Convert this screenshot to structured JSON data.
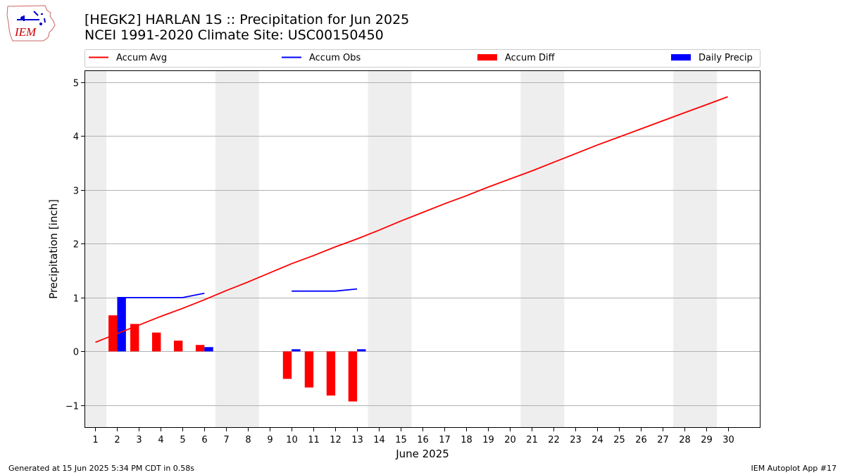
{
  "title": "[HEGK2] HARLAN 1S :: Precipitation for Jun 2025",
  "subtitle": "NCEI 1991-2020 Climate Site: USC00150450",
  "logo_text": "IEM",
  "footer_left": "Generated at 15 Jun 2025 5:34 PM CDT in 0.58s",
  "footer_right": "IEM Autoplot App #17",
  "chart_data": {
    "type": "bar",
    "xlabel": "June 2025",
    "ylabel": "Precipitation [inch]",
    "xlim": [
      0.5,
      31.5
    ],
    "ylim": [
      -1.42,
      5.22
    ],
    "yticks": [
      -1,
      0,
      1,
      2,
      3,
      4,
      5
    ],
    "ytick_labels": [
      "−1",
      "0",
      "1",
      "2",
      "3",
      "4",
      "5"
    ],
    "xticks": [
      1,
      2,
      3,
      4,
      5,
      6,
      7,
      8,
      9,
      10,
      11,
      12,
      13,
      14,
      15,
      16,
      17,
      18,
      19,
      20,
      21,
      22,
      23,
      24,
      25,
      26,
      27,
      28,
      29,
      30
    ],
    "xtick_labels": [
      "1",
      "2",
      "3",
      "4",
      "5",
      "6",
      "7",
      "8",
      "9",
      "10",
      "11",
      "12",
      "13",
      "14",
      "15",
      "16",
      "17",
      "18",
      "19",
      "20",
      "21",
      "22",
      "23",
      "24",
      "25",
      "26",
      "27",
      "28",
      "29",
      "30"
    ],
    "weekend_bands": [
      [
        0.5,
        1.5
      ],
      [
        6.5,
        8.5
      ],
      [
        13.5,
        15.5
      ],
      [
        20.5,
        22.5
      ],
      [
        27.5,
        29.5
      ]
    ],
    "grid": "y",
    "legend_placement": "top",
    "colors": {
      "accum_avg": "#ff0000",
      "accum_obs": "#0000ff",
      "accum_diff": "#ff0000",
      "daily_precip": "#0000ff",
      "weekend": "#eeeeee",
      "grid": "#b0b0b0"
    },
    "series": [
      {
        "name": "Accum Avg",
        "kind": "line",
        "x": [
          1,
          2,
          3,
          4,
          5,
          6,
          7,
          8,
          9,
          10,
          11,
          12,
          13,
          14,
          15,
          16,
          17,
          18,
          19,
          20,
          21,
          22,
          23,
          24,
          25,
          26,
          27,
          28,
          29,
          30
        ],
        "values": [
          0.17,
          0.33,
          0.49,
          0.65,
          0.8,
          0.96,
          1.13,
          1.29,
          1.46,
          1.63,
          1.78,
          1.94,
          2.09,
          2.25,
          2.42,
          2.58,
          2.74,
          2.89,
          3.05,
          3.2,
          3.35,
          3.51,
          3.67,
          3.83,
          3.98,
          4.13,
          4.28,
          4.43,
          4.58,
          4.73
        ]
      },
      {
        "name": "Accum Obs",
        "kind": "line",
        "x": [
          2,
          3,
          4,
          5,
          6,
          null,
          10,
          11,
          12,
          13
        ],
        "values": [
          1.0,
          1.0,
          1.0,
          1.0,
          1.08,
          null,
          1.12,
          1.12,
          1.12,
          1.16
        ]
      },
      {
        "name": "Accum Diff",
        "kind": "bar",
        "x": [
          2,
          3,
          4,
          5,
          6,
          10,
          11,
          12,
          13
        ],
        "values": [
          0.67,
          0.51,
          0.35,
          0.2,
          0.12,
          -0.51,
          -0.67,
          -0.82,
          -0.93
        ]
      },
      {
        "name": "Daily Precip",
        "kind": "bar",
        "x": [
          2,
          6,
          10,
          13
        ],
        "values": [
          1.0,
          0.08,
          0.04,
          0.04
        ]
      }
    ]
  }
}
